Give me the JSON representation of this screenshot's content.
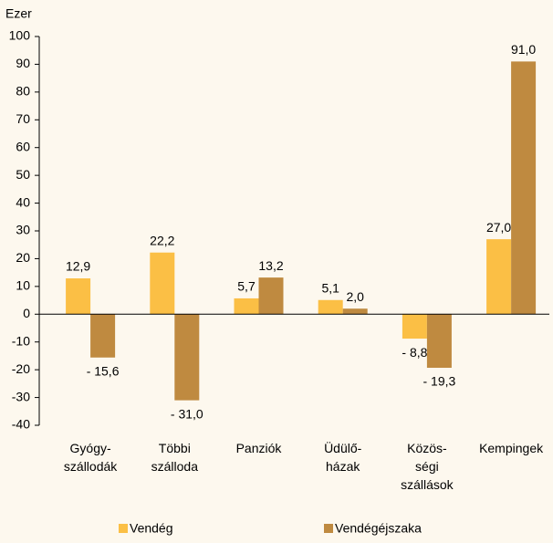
{
  "chart_data": {
    "type": "bar",
    "y_label": "Ezer",
    "categories": [
      "Gyógy-\nszállodák",
      "Többi\nszálloda",
      "Panziók",
      "Üdülő-\nházak",
      "Közös-\nségi\nszállások",
      "Kempingek"
    ],
    "series": [
      {
        "name": "Vendég",
        "color": "#fbbf45",
        "values": [
          12.9,
          22.2,
          5.7,
          5.1,
          -8.8,
          27.0
        ],
        "value_labels": [
          "12,9",
          "22,2",
          "5,7",
          "5,1",
          "- 8,8",
          "27,0"
        ]
      },
      {
        "name": "Vendégéjszaka",
        "color": "#bf8a40",
        "values": [
          -15.6,
          -31.0,
          13.2,
          2.0,
          -19.3,
          91.0
        ],
        "value_labels": [
          "- 15,6",
          "- 31,0",
          "13,2",
          "2,0",
          "- 19,3",
          "91,0"
        ]
      }
    ],
    "ylim": [
      -40,
      100
    ],
    "yticks": [
      -40,
      -30,
      -20,
      -10,
      0,
      10,
      20,
      30,
      40,
      50,
      60,
      70,
      80,
      90,
      100
    ],
    "legend": "bottom"
  }
}
